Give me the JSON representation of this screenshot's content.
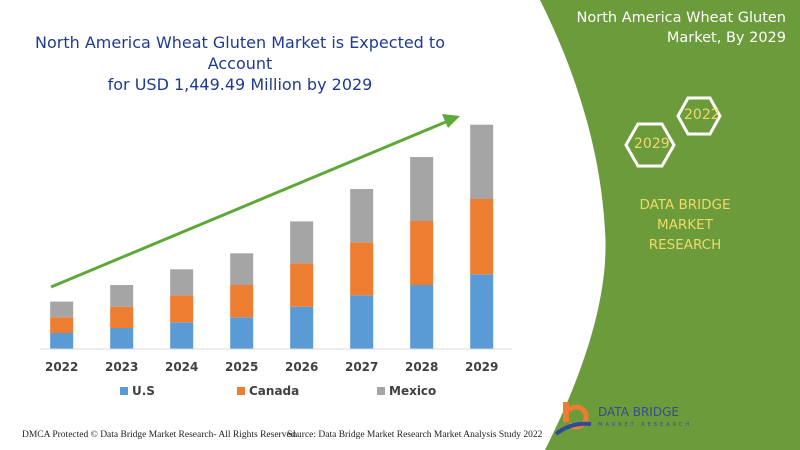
{
  "header": {
    "title_line1": "North America Wheat Gluten Market is Expected to Account",
    "title_line2": "for USD 1,449.49 Million by 2029"
  },
  "panel": {
    "title_line1": "North America Wheat Gluten",
    "title_line2": "Market, By 2029",
    "hex_left": "2029",
    "hex_right": "2022",
    "brand_line1": "DATA BRIDGE MARKET",
    "brand_line2": "RESEARCH",
    "logo_text": "DATA BRIDGE",
    "logo_sub": "MARKET RESEARCH",
    "color": "#6b9b3a",
    "accent_text": "#f1d86a"
  },
  "footer": {
    "left": "DMCA Protected © Data Bridge Market Research- All Rights Reserved.",
    "right": "Source: Data Bridge Market Research Market Analysis Study 2022"
  },
  "chart_data": {
    "type": "bar",
    "stacked": true,
    "title": "North America Wheat Gluten Market is Expected to Account for USD 1,449.49 Million by 2029",
    "categories": [
      "2022",
      "2023",
      "2024",
      "2025",
      "2026",
      "2027",
      "2028",
      "2029"
    ],
    "series": [
      {
        "name": "U.S",
        "color": "#5b9bd5",
        "values": [
          16,
          21,
          26.7,
          31.7,
          42.3,
          53.7,
          64,
          74.7
        ]
      },
      {
        "name": "Canada",
        "color": "#ed7d31",
        "values": [
          15.7,
          21.3,
          27,
          32.3,
          43.3,
          53,
          64,
          75.3
        ]
      },
      {
        "name": "Mexico",
        "color": "#a5a5a5",
        "values": [
          15.7,
          21.7,
          26,
          31.7,
          42,
          53.3,
          64,
          74.3
        ]
      }
    ],
    "value_note": "relative scale; no y-axis printed",
    "ylim": [
      0,
      230
    ],
    "grid": false,
    "legend": "bottom",
    "trend_arrow_color": "#5ea83a"
  }
}
